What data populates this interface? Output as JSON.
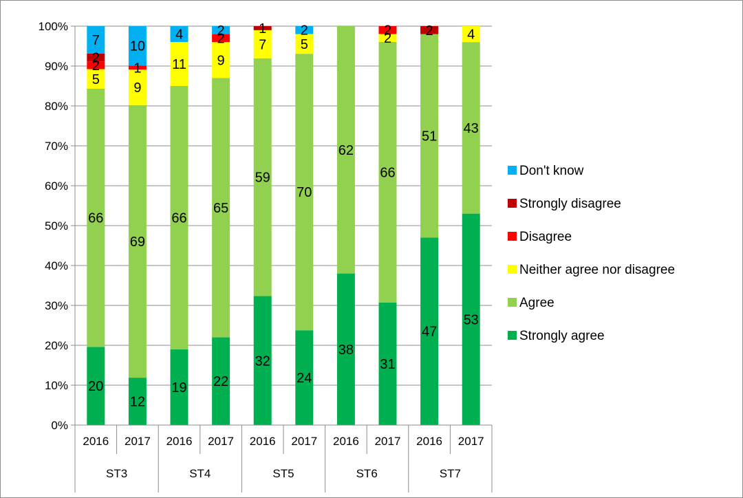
{
  "chart_data": {
    "type": "bar",
    "stacked": true,
    "percent_stacked": true,
    "groups": [
      "ST3",
      "ST4",
      "ST5",
      "ST6",
      "ST7"
    ],
    "categories": [
      "2016",
      "2017",
      "2016",
      "2017",
      "2016",
      "2017",
      "2016",
      "2017",
      "2016",
      "2017"
    ],
    "y_ticks": [
      "0%",
      "10%",
      "20%",
      "30%",
      "40%",
      "50%",
      "60%",
      "70%",
      "80%",
      "90%",
      "100%"
    ],
    "ylim": [
      0,
      100
    ],
    "grid": true,
    "legend_position": "right",
    "series": [
      {
        "name": "Strongly agree",
        "color": "#00b050",
        "values": [
          20,
          12,
          19,
          22,
          32,
          24,
          38,
          31,
          47,
          53
        ]
      },
      {
        "name": "Agree",
        "color": "#92d050",
        "values": [
          66,
          69,
          66,
          65,
          59,
          70,
          62,
          66,
          51,
          43
        ]
      },
      {
        "name": "Neither agree nor disagree",
        "color": "#ffff00",
        "values": [
          5,
          9,
          11,
          9,
          7,
          5,
          0,
          2,
          0,
          4
        ]
      },
      {
        "name": "Disagree",
        "color": "#ff0000",
        "values": [
          2,
          1,
          0,
          2,
          0,
          0,
          0,
          2,
          0,
          0
        ]
      },
      {
        "name": "Strongly disagree",
        "color": "#c00000",
        "values": [
          2,
          0,
          0,
          0,
          1,
          0,
          0,
          0,
          2,
          0
        ]
      },
      {
        "name": "Don't know",
        "color": "#00b0f0",
        "values": [
          7,
          10,
          4,
          2,
          0,
          2,
          0,
          0,
          0,
          0
        ]
      }
    ]
  }
}
